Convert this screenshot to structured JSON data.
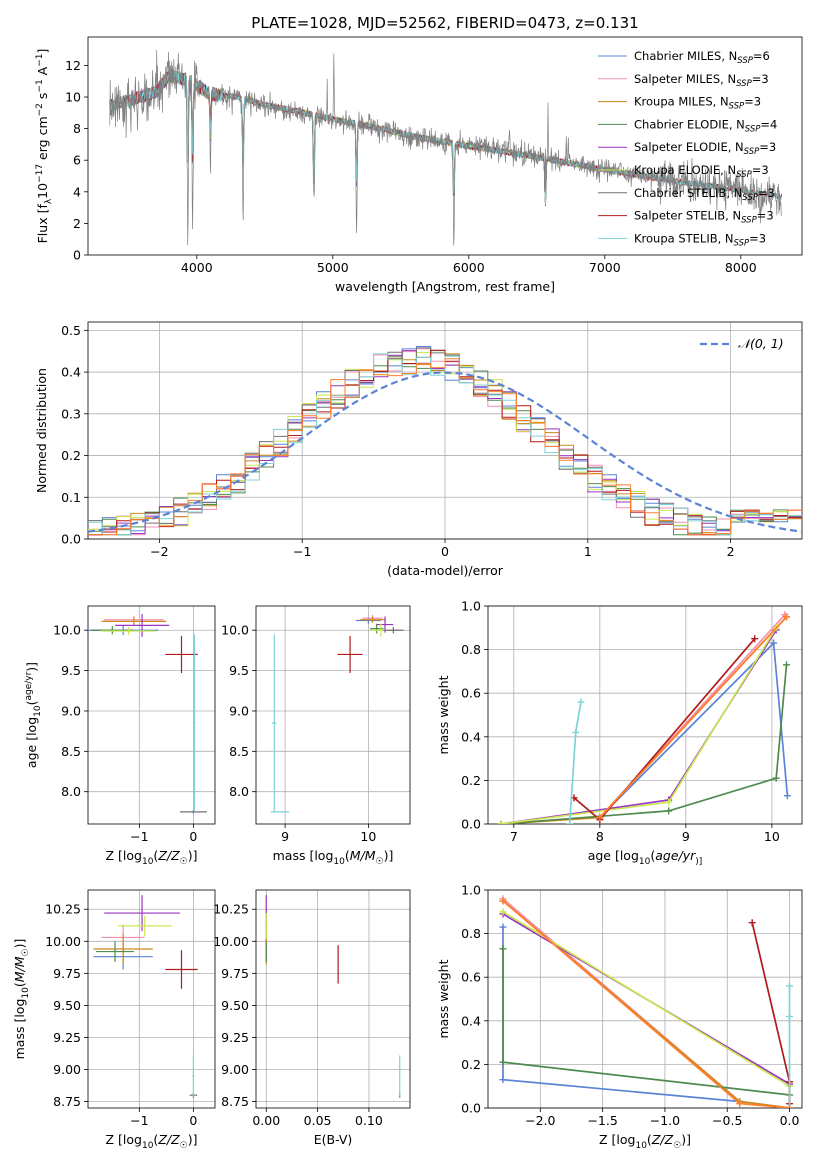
{
  "chart_data": [
    {
      "id": "spectrum",
      "type": "line",
      "title": "PLATE=1028, MJD=52562, FIBERID=0473, z=0.131",
      "xlabel": "wavelength [Angstrom, rest frame]",
      "ylabel": "Flux [f$_\\lambda$10$^{-17}$ erg cm$^{-2}$ s$^{-1}$ A$^{-1}$]",
      "ylabel_parts": [
        "Flux [f",
        "λ",
        "10",
        "−17",
        " erg cm",
        "−2",
        " s",
        "−1",
        " A",
        "−1",
        "]"
      ],
      "xlim": [
        3200,
        8450
      ],
      "ylim": [
        0,
        13.8
      ],
      "xticks": [
        4000,
        5000,
        6000,
        7000,
        8000
      ],
      "yticks": [
        0,
        2,
        4,
        6,
        8,
        10,
        12
      ],
      "grid": false,
      "legend_position": "top-right",
      "series": [
        {
          "name": "Chabrier MILES, N$_{SSP}$=6",
          "label_main": "Chabrier MILES, N",
          "label_sub": "SSP",
          "label_tail": "=6",
          "color": "#5b84d6"
        },
        {
          "name": "Salpeter MILES, N$_{SSP}$=3",
          "label_main": "Salpeter MILES, N",
          "label_sub": "SSP",
          "label_tail": "=3",
          "color": "#f48fb1"
        },
        {
          "name": "Kroupa MILES, N$_{SSP}$=3",
          "label_main": "Kroupa MILES, N",
          "label_sub": "SSP",
          "label_tail": "=3",
          "color": "#cc8a1c"
        },
        {
          "name": "Chabrier ELODIE, N$_{SSP}$=4",
          "label_main": "Chabrier ELODIE, N",
          "label_sub": "SSP",
          "label_tail": "=4",
          "color": "#4f8a4f"
        },
        {
          "name": "Salpeter ELODIE, N$_{SSP}$=3",
          "label_main": "Salpeter ELODIE, N",
          "label_sub": "SSP",
          "label_tail": "=3",
          "color": "#9b34c0"
        },
        {
          "name": "Kroupa ELODIE, N$_{SSP}$=3",
          "label_main": "Kroupa ELODIE, N",
          "label_sub": "SSP",
          "label_tail": "=3",
          "color": "#c9e850"
        },
        {
          "name": "Chabrier STELIB, N$_{SSP}$=3",
          "label_main": "Chabrier STELIB, N",
          "label_sub": "SSP",
          "label_tail": "=3",
          "color": "#707070"
        },
        {
          "name": "Salpeter STELIB, N$_{SSP}$=3",
          "label_main": "Salpeter STELIB, N",
          "label_sub": "SSP",
          "label_tail": "=3",
          "color": "#b31b1b"
        },
        {
          "name": "Kroupa STELIB, N$_{SSP}$=3",
          "label_main": "Kroupa STELIB, N",
          "label_sub": "SSP",
          "label_tail": "=3",
          "color": "#7dd3d8"
        }
      ],
      "observed_color": "#808080",
      "continuum_points": [
        [
          3350,
          9.4
        ],
        [
          3500,
          9.8
        ],
        [
          3700,
          10.3
        ],
        [
          3800,
          11.4
        ],
        [
          3950,
          11.0
        ],
        [
          4100,
          10.2
        ],
        [
          4300,
          10.0
        ],
        [
          4500,
          9.5
        ],
        [
          4800,
          9.0
        ],
        [
          5000,
          8.6
        ],
        [
          5300,
          8.1
        ],
        [
          5600,
          7.5
        ],
        [
          6000,
          6.9
        ],
        [
          6500,
          6.2
        ],
        [
          7000,
          5.4
        ],
        [
          7500,
          4.7
        ],
        [
          8000,
          4.1
        ],
        [
          8300,
          3.7
        ]
      ],
      "absorption_lines": [
        [
          3934,
          9.6
        ],
        [
          3969,
          8.8
        ],
        [
          4101,
          4.8
        ],
        [
          4340,
          7.5
        ],
        [
          4861,
          8.0
        ],
        [
          5175,
          7.2
        ],
        [
          5890,
          6.4
        ],
        [
          6563,
          5.4
        ]
      ],
      "emission_lines": [
        [
          4861,
          3.0
        ],
        [
          4959,
          2.6
        ],
        [
          5007,
          4.0
        ],
        [
          6300,
          2.0
        ],
        [
          6563,
          7.0
        ],
        [
          6583,
          3.5
        ],
        [
          6717,
          2.0
        ],
        [
          6731,
          1.8
        ]
      ]
    },
    {
      "id": "residuals",
      "type": "histogram",
      "xlabel": "(data-model)/error",
      "ylabel": "Normed distribution",
      "xlim": [
        -2.5,
        2.5
      ],
      "ylim": [
        0,
        0.52
      ],
      "xticks": [
        -2,
        -1,
        0,
        1,
        2
      ],
      "yticks": [
        0.0,
        0.1,
        0.2,
        0.3,
        0.4,
        0.5
      ],
      "grid": true,
      "legend_position": "top-right",
      "reference_label": "$\\mathcal{N}(0,1)$",
      "reference_display": "𝒩(0, 1)",
      "reference_color": "#5b84d6",
      "bin_width": 0.1,
      "bin_start": -2.5,
      "hist_colors": [
        "#5b84d6",
        "#f48fb1",
        "#cc8a1c",
        "#4f8a4f",
        "#9b34c0",
        "#c9e850",
        "#707070",
        "#b31b1b",
        "#7dd3d8",
        "#ff7f2a"
      ]
    },
    {
      "id": "age_vs_Z",
      "type": "errorbar",
      "xlabel": "Z [log$_{10}$(Z/Z$_\\odot$)]",
      "xlabel_parts": [
        "Z [log",
        "10",
        "(",
        "Z/Z",
        "☉",
        ")]"
      ],
      "ylabel": "age  [log$_{10}$(age/yr)]",
      "ylabel_parts": [
        "age  [log",
        "10",
        "(",
        "age/yr",
        ")]"
      ],
      "xlim": [
        -1.95,
        0.4
      ],
      "ylim": [
        7.6,
        10.3
      ],
      "xticks": [
        -1,
        0
      ],
      "yticks": [
        8.0,
        8.5,
        9.0,
        9.5,
        10.0
      ],
      "grid": true,
      "points": [
        {
          "x": -1.3,
          "y": 10.0,
          "xerr": 0.65,
          "yerr": 0.06,
          "color": "#5b84d6"
        },
        {
          "x": -1.1,
          "y": 10.13,
          "xerr": 0.55,
          "yerr": 0.05,
          "color": "#f48fb1"
        },
        {
          "x": -1.1,
          "y": 10.11,
          "xerr": 0.6,
          "yerr": 0.05,
          "color": "#cc8a1c"
        },
        {
          "x": -1.5,
          "y": 10.0,
          "xerr": 0.4,
          "yerr": 0.05,
          "color": "#4f8a4f"
        },
        {
          "x": -0.95,
          "y": 10.06,
          "xerr": 0.5,
          "yerr": 0.14,
          "color": "#9b34c0"
        },
        {
          "x": -1.2,
          "y": 9.99,
          "xerr": 0.5,
          "yerr": 0.05,
          "color": "#c9e850"
        },
        {
          "x": 0.0,
          "y": 7.75,
          "xerr": 0.25,
          "yerr": 0.02,
          "color": "#707070"
        },
        {
          "x": -0.22,
          "y": 9.7,
          "xerr": 0.3,
          "yerr": 0.23,
          "color": "#b31b1b"
        },
        {
          "x": 0.02,
          "y": 8.85,
          "xerr": 0.02,
          "yerr": 1.1,
          "color": "#7dd3d8"
        }
      ]
    },
    {
      "id": "age_vs_mass",
      "type": "errorbar",
      "xlabel": "mass [log$_{10}$(M/M$_\\odot$)]",
      "xlabel_parts": [
        "mass [log",
        "10",
        "(",
        "M/M",
        "☉",
        ")]"
      ],
      "ylabel": "",
      "xlim": [
        8.65,
        10.5
      ],
      "ylim": [
        7.6,
        10.3
      ],
      "xticks": [
        9,
        10
      ],
      "yticks": [
        8.0,
        8.5,
        9.0,
        9.5,
        10.0
      ],
      "grid": true,
      "points": [
        {
          "x": 10.0,
          "y": 10.12,
          "xerr": 0.15,
          "yerr": 0.04,
          "color": "#5b84d6"
        },
        {
          "x": 10.05,
          "y": 10.15,
          "xerr": 0.12,
          "yerr": 0.04,
          "color": "#f48fb1"
        },
        {
          "x": 10.05,
          "y": 10.13,
          "xerr": 0.15,
          "yerr": 0.04,
          "color": "#cc8a1c"
        },
        {
          "x": 10.1,
          "y": 10.02,
          "xerr": 0.08,
          "yerr": 0.06,
          "color": "#4f8a4f"
        },
        {
          "x": 10.2,
          "y": 10.07,
          "xerr": 0.1,
          "yerr": 0.1,
          "color": "#9b34c0"
        },
        {
          "x": 10.15,
          "y": 10.0,
          "xerr": 0.12,
          "yerr": 0.08,
          "color": "#c9e850"
        },
        {
          "x": 10.3,
          "y": 10.0,
          "xerr": 0.12,
          "yerr": 0.04,
          "color": "#707070"
        },
        {
          "x": 9.78,
          "y": 9.7,
          "xerr": 0.15,
          "yerr": 0.23,
          "color": "#b31b1b"
        },
        {
          "x": 8.87,
          "y": 8.85,
          "xerr": 0.03,
          "yerr": 1.1,
          "color": "#7dd3d8"
        }
      ],
      "extra_hbar": {
        "x1": 8.83,
        "x2": 9.05,
        "y": 7.75,
        "color": "#7dd3d8"
      }
    },
    {
      "id": "mass_weight_vs_age",
      "type": "line",
      "xlabel": "age  [log$_{10}$(age/yr)]",
      "xlabel_parts": [
        "age  [log",
        "10",
        "(",
        "age/yr",
        ")]"
      ],
      "ylabel": "mass weight",
      "xlim": [
        6.7,
        10.35
      ],
      "ylim": [
        0,
        1.0
      ],
      "xticks": [
        7,
        8,
        9,
        10
      ],
      "yticks": [
        0.0,
        0.2,
        0.4,
        0.6,
        0.8,
        1.0
      ],
      "grid": true,
      "series": [
        {
          "color": "#5b84d6",
          "x": [
            8.0,
            10.02,
            10.18
          ],
          "y": [
            0.03,
            0.83,
            0.13
          ]
        },
        {
          "color": "#f48fb1",
          "x": [
            8.0,
            10.15
          ],
          "y": [
            0.03,
            0.96
          ]
        },
        {
          "color": "#cc8a1c",
          "x": [
            6.85,
            8.0,
            10.17
          ],
          "y": [
            0.0,
            0.03,
            0.95
          ]
        },
        {
          "color": "#4f8a4f",
          "x": [
            6.85,
            8.8,
            10.05,
            10.17
          ],
          "y": [
            0.0,
            0.06,
            0.21,
            0.73
          ]
        },
        {
          "color": "#9b34c0",
          "x": [
            6.85,
            8.8,
            10.05
          ],
          "y": [
            0.0,
            0.11,
            0.89
          ]
        },
        {
          "color": "#c9e850",
          "x": [
            6.85,
            8.8,
            10.05
          ],
          "y": [
            0.0,
            0.1,
            0.9
          ]
        },
        {
          "color": "#b31b1b",
          "x": [
            7.7,
            8.0,
            9.8
          ],
          "y": [
            0.12,
            0.02,
            0.85
          ]
        },
        {
          "color": "#7dd3d8",
          "x": [
            7.65,
            7.72,
            7.78
          ],
          "y": [
            0.0,
            0.42,
            0.56
          ]
        },
        {
          "color": "#ff7f2a",
          "x": [
            8.0,
            10.17
          ],
          "y": [
            0.03,
            0.95
          ]
        }
      ]
    },
    {
      "id": "mass_vs_Z",
      "type": "errorbar",
      "xlabel": "Z [log$_{10}$(Z/Z$_\\odot$)]",
      "xlabel_parts": [
        "Z [log",
        "10",
        "(",
        "Z/Z",
        "☉",
        ")]"
      ],
      "ylabel": "mass [log$_{10}$(M/M$_\\odot$)]",
      "ylabel_parts": [
        "mass [log",
        "10",
        "(",
        "M/M",
        "☉",
        ")]"
      ],
      "xlim": [
        -1.95,
        0.4
      ],
      "ylim": [
        8.7,
        10.4
      ],
      "xticks": [
        -1,
        0
      ],
      "yticks": [
        8.75,
        9.0,
        9.25,
        9.5,
        9.75,
        10.0,
        10.25
      ],
      "grid": true,
      "points": [
        {
          "x": -1.3,
          "y": 9.88,
          "xerr": 0.55,
          "yerr": 0.1,
          "color": "#5b84d6"
        },
        {
          "x": -1.3,
          "y": 10.03,
          "xerr": 0.4,
          "yerr": 0.1,
          "color": "#f48fb1"
        },
        {
          "x": -1.3,
          "y": 9.94,
          "xerr": 0.55,
          "yerr": 0.12,
          "color": "#cc8a1c"
        },
        {
          "x": -1.45,
          "y": 9.92,
          "xerr": 0.35,
          "yerr": 0.08,
          "color": "#4f8a4f"
        },
        {
          "x": -0.95,
          "y": 10.22,
          "xerr": 0.7,
          "yerr": 0.14,
          "color": "#9b34c0"
        },
        {
          "x": -0.9,
          "y": 10.12,
          "xerr": 0.5,
          "yerr": 0.08,
          "color": "#c9e850"
        },
        {
          "x": 0.0,
          "y": 8.8,
          "xerr": 0.07,
          "yerr": 0.02,
          "color": "#707070"
        },
        {
          "x": -0.22,
          "y": 9.78,
          "xerr": 0.3,
          "yerr": 0.15,
          "color": "#b31b1b"
        },
        {
          "x": 0.0,
          "y": 8.95,
          "xerr": 0.02,
          "yerr": 0.16,
          "color": "#7dd3d8"
        }
      ]
    },
    {
      "id": "mass_vs_ebv",
      "type": "errorbar",
      "xlabel": "E(B-V)",
      "ylabel": "",
      "xlim": [
        -0.01,
        0.14
      ],
      "ylim": [
        8.7,
        10.4
      ],
      "xticks": [
        0.0,
        0.05,
        0.1
      ],
      "xtick_labels": [
        "0.00",
        "0.05",
        "0.10"
      ],
      "yticks": [
        8.75,
        9.0,
        9.25,
        9.5,
        9.75,
        10.0,
        10.25
      ],
      "grid": true,
      "points": [
        {
          "x": 0.0,
          "y": 10.0,
          "xerr": 0.0,
          "yerr": 0.12,
          "color": "#5b84d6"
        },
        {
          "x": 0.0,
          "y": 10.03,
          "xerr": 0.0,
          "yerr": 0.1,
          "color": "#f48fb1"
        },
        {
          "x": 0.0,
          "y": 9.94,
          "xerr": 0.0,
          "yerr": 0.12,
          "color": "#cc8a1c"
        },
        {
          "x": 0.0,
          "y": 9.92,
          "xerr": 0.0,
          "yerr": 0.08,
          "color": "#4f8a4f"
        },
        {
          "x": 0.0,
          "y": 10.22,
          "xerr": 0.0,
          "yerr": 0.14,
          "color": "#9b34c0"
        },
        {
          "x": 0.0,
          "y": 10.12,
          "xerr": 0.0,
          "yerr": 0.1,
          "color": "#c9e850"
        },
        {
          "x": 0.13,
          "y": 8.8,
          "xerr": 0.0,
          "yerr": 0.02,
          "color": "#707070"
        },
        {
          "x": 0.07,
          "y": 9.82,
          "xerr": 0.0,
          "yerr": 0.15,
          "color": "#b31b1b"
        },
        {
          "x": 0.13,
          "y": 8.95,
          "xerr": 0.0,
          "yerr": 0.16,
          "color": "#7dd3d8"
        }
      ]
    },
    {
      "id": "mass_weight_vs_Z",
      "type": "line",
      "xlabel": "Z [log$_{10}$(Z/Z$_\\odot$)]",
      "xlabel_parts": [
        "Z [log",
        "10",
        "(",
        "Z/Z",
        "☉",
        ")]"
      ],
      "ylabel": "mass weight",
      "xlim": [
        -2.42,
        0.1
      ],
      "ylim": [
        0,
        1.0
      ],
      "xticks": [
        -2.0,
        -1.5,
        -1.0,
        -0.5,
        0.0
      ],
      "xtick_labels": [
        "−2.0",
        "−1.5",
        "−1.0",
        "−0.5",
        "0.0"
      ],
      "yticks": [
        0.0,
        0.2,
        0.4,
        0.6,
        0.8,
        1.0
      ],
      "grid": true,
      "series": [
        {
          "color": "#5b84d6",
          "x": [
            -2.3,
            -2.3,
            -0.4,
            0.0
          ],
          "y": [
            0.83,
            0.13,
            0.03,
            0.0
          ]
        },
        {
          "color": "#f48fb1",
          "x": [
            -2.3,
            -0.4,
            0.0
          ],
          "y": [
            0.96,
            0.03,
            0.0
          ]
        },
        {
          "color": "#cc8a1c",
          "x": [
            -2.3,
            -0.4,
            0.0
          ],
          "y": [
            0.95,
            0.03,
            0.0
          ]
        },
        {
          "color": "#4f8a4f",
          "x": [
            -2.3,
            -2.3,
            0.0
          ],
          "y": [
            0.73,
            0.21,
            0.06
          ]
        },
        {
          "color": "#9b34c0",
          "x": [
            -2.3,
            0.0,
            0.0
          ],
          "y": [
            0.89,
            0.11,
            0.0
          ]
        },
        {
          "color": "#c9e850",
          "x": [
            -2.3,
            0.0,
            0.0
          ],
          "y": [
            0.9,
            0.1,
            0.0
          ]
        },
        {
          "color": "#b31b1b",
          "x": [
            -0.3,
            0.0,
            0.0
          ],
          "y": [
            0.85,
            0.12,
            0.02
          ]
        },
        {
          "color": "#7dd3d8",
          "x": [
            0.0,
            0.0,
            0.0
          ],
          "y": [
            0.56,
            0.42,
            0.0
          ]
        },
        {
          "color": "#ff7f2a",
          "x": [
            -2.3,
            -0.4,
            0.0
          ],
          "y": [
            0.95,
            0.02,
            0.0
          ]
        }
      ]
    }
  ]
}
